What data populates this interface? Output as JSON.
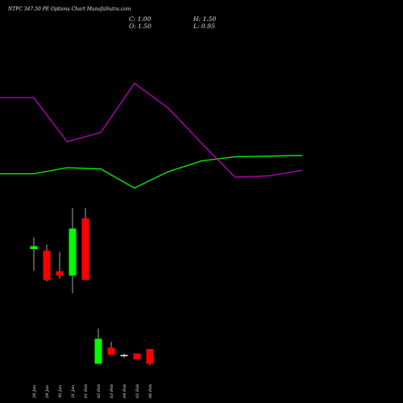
{
  "title": "NTPC 347.50 PE Options Chart MunafaSutra.com",
  "ohlc": {
    "c_label": "C: 1.00",
    "h_label": "H: 1.50",
    "o_label": "O: 1.50",
    "l_label": "L: 0.95"
  },
  "chart_data": {
    "type": "candlestick",
    "title": "NTPC 347.50 PE Options Chart MunafaSutra.com",
    "categories": [
      "28 Jan",
      "29 Jan",
      "30 Jan",
      "31 Jan",
      "01 Feb",
      "02 Feb",
      "03 Feb",
      "04 Feb",
      "05 Feb",
      "06 Feb"
    ],
    "series": [
      {
        "type": "candlestick",
        "candles": [
          {
            "open": 4.9,
            "high": 5.3,
            "low": 4.15,
            "close": 5.0,
            "color": "#00ff00"
          },
          {
            "open": 4.85,
            "high": 5.05,
            "low": 3.8,
            "close": 3.85,
            "color": "#ff0000"
          },
          {
            "open": 4.15,
            "high": 4.8,
            "low": 3.9,
            "close": 4.0,
            "color": "#ff0000"
          },
          {
            "open": 4.0,
            "high": 6.3,
            "low": 3.4,
            "close": 5.6,
            "color": "#00ff00"
          },
          {
            "open": 5.95,
            "high": 6.3,
            "low": 3.85,
            "close": 3.85,
            "color": "#ff0000"
          },
          {
            "open": 1.0,
            "high": 2.2,
            "low": 1.0,
            "close": 1.85,
            "color": "#00ff00"
          },
          {
            "open": 1.55,
            "high": 1.75,
            "low": 1.3,
            "close": 1.3,
            "color": "#ff0000"
          },
          {
            "open": 1.3,
            "high": 1.35,
            "low": 1.2,
            "close": 1.3,
            "color": "#ffffff"
          },
          {
            "open": 1.35,
            "high": 1.35,
            "low": 1.15,
            "close": 1.15,
            "color": "#ff0000"
          },
          {
            "open": 1.5,
            "high": 1.5,
            "low": 0.95,
            "close": 1.0,
            "color": "#ff0000"
          }
        ]
      },
      {
        "type": "line",
        "color": "#00ff00",
        "values": [
          0.53,
          0.53,
          0.62,
          0.6,
          0.32,
          0.56,
          0.72,
          0.78,
          0.79,
          0.8
        ]
      },
      {
        "type": "line",
        "color": "#c000c0",
        "values": [
          1.65,
          1.65,
          1.0,
          1.14,
          1.86,
          1.5,
          0.98,
          0.48,
          0.5,
          0.58
        ]
      }
    ]
  }
}
